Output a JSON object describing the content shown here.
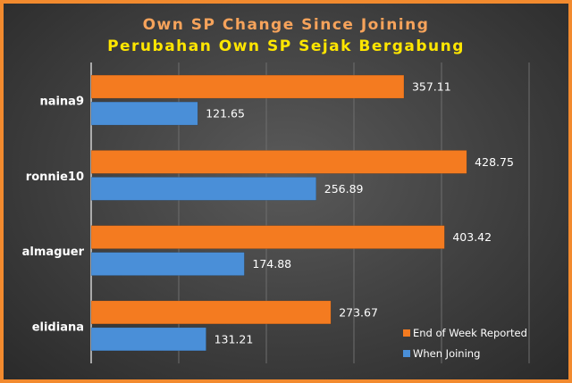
{
  "chart_data": {
    "type": "bar",
    "orientation": "horizontal",
    "title": "Own SP Change Since Joining",
    "subtitle": "Perubahan Own SP Sejak Bergabung",
    "categories": [
      "naina9",
      "ronnie10",
      "almaguer",
      "elidiana"
    ],
    "series": [
      {
        "name": "End of Week Reported",
        "values": [
          357.11,
          428.75,
          403.42,
          273.67
        ],
        "color": "#f47b20"
      },
      {
        "name": "When Joining",
        "values": [
          121.65,
          256.89,
          174.88,
          131.21
        ],
        "color": "#4a8fd8"
      }
    ],
    "xlim": [
      0,
      500
    ],
    "grid": true,
    "legend": "bottom-right",
    "colors": {
      "title": "#f6a35b",
      "subtitle": "#ffe600",
      "text": "#ffffff",
      "border": "#f28a2e"
    }
  }
}
